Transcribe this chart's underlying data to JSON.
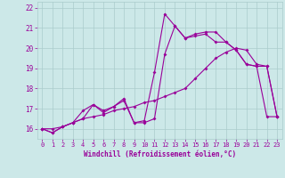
{
  "line1_x": [
    0,
    1,
    2,
    3,
    4,
    5,
    6,
    7,
    8,
    9,
    10,
    11,
    12,
    13,
    14,
    15,
    16,
    17,
    18,
    19,
    20,
    21,
    22,
    23
  ],
  "line1_y": [
    16.0,
    15.8,
    16.1,
    16.3,
    16.9,
    17.2,
    16.9,
    17.1,
    17.5,
    16.3,
    16.4,
    18.8,
    21.7,
    21.1,
    20.5,
    20.7,
    20.8,
    20.8,
    20.3,
    19.9,
    19.2,
    19.1,
    19.1,
    16.6
  ],
  "line2_x": [
    0,
    1,
    2,
    3,
    4,
    5,
    6,
    7,
    8,
    9,
    10,
    11,
    12,
    13,
    14,
    15,
    16,
    17,
    18,
    19,
    20,
    21,
    22,
    23
  ],
  "line2_y": [
    16.0,
    15.8,
    16.1,
    16.3,
    16.5,
    17.2,
    16.8,
    17.1,
    17.4,
    16.3,
    16.3,
    16.5,
    19.7,
    21.1,
    20.5,
    20.6,
    20.7,
    20.3,
    20.3,
    19.9,
    19.2,
    19.1,
    16.6,
    16.6
  ],
  "line3_x": [
    0,
    1,
    2,
    3,
    4,
    5,
    6,
    7,
    8,
    9,
    10,
    11,
    12,
    13,
    14,
    15,
    16,
    17,
    18,
    19,
    20,
    21,
    22,
    23
  ],
  "line3_y": [
    16.0,
    16.0,
    16.1,
    16.3,
    16.5,
    16.6,
    16.7,
    16.9,
    17.0,
    17.1,
    17.3,
    17.4,
    17.6,
    17.8,
    18.0,
    18.5,
    19.0,
    19.5,
    19.8,
    20.0,
    19.9,
    19.2,
    19.1,
    16.6
  ],
  "line_color": "#990099",
  "bg_color": "#cce8e8",
  "grid_color": "#aacccc",
  "xlabel": "Windchill (Refroidissement éolien,°C)",
  "xlabel_color": "#990099",
  "tick_color": "#990099",
  "ylim": [
    15.5,
    22.3
  ],
  "xlim": [
    -0.5,
    23.5
  ],
  "yticks": [
    16,
    17,
    18,
    19,
    20,
    21,
    22
  ],
  "xticks": [
    0,
    1,
    2,
    3,
    4,
    5,
    6,
    7,
    8,
    9,
    10,
    11,
    12,
    13,
    14,
    15,
    16,
    17,
    18,
    19,
    20,
    21,
    22,
    23
  ]
}
